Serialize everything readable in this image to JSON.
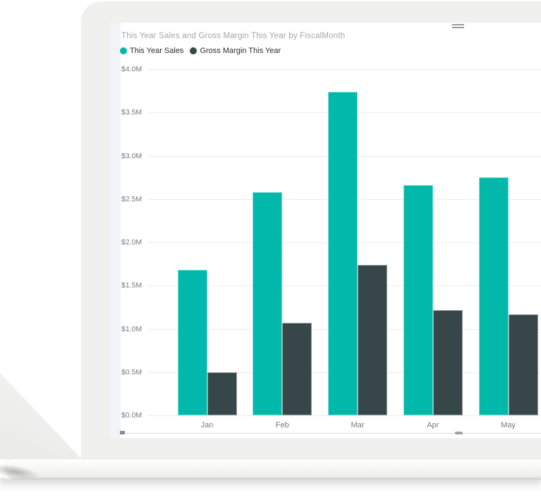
{
  "visual": {
    "title": "This Year Sales and Gross Margin This Year by FiscalMonth",
    "menu_icon": "grab-handle"
  },
  "chart_data": {
    "type": "bar",
    "title": "This Year Sales and Gross Margin This Year by FiscalMonth",
    "categories": [
      "Jan",
      "Feb",
      "Mar",
      "Apr",
      "May"
    ],
    "series": [
      {
        "name": "This Year Sales",
        "color": "#01B8AA",
        "values": [
          1.68,
          2.58,
          3.74,
          2.66,
          2.75
        ]
      },
      {
        "name": "Gross Margin This Year",
        "color": "#374649",
        "values": [
          0.5,
          1.07,
          1.74,
          1.22,
          1.17
        ]
      }
    ],
    "value_unit": "M",
    "xlabel": "FiscalMonth",
    "ylabel": "",
    "ylim": [
      0,
      4.0
    ],
    "yticks": [
      "$4.0M",
      "$3.5M",
      "$3.0M",
      "$2.5M",
      "$2.0M",
      "$1.5M",
      "$1.0M",
      "$0.5M",
      "$0.0M"
    ],
    "grid": true,
    "legend_position": "top-left"
  },
  "colors": {
    "series1": "#01B8AA",
    "series2": "#374649",
    "title_text": "#a6a6a6",
    "axis_text": "#7a7a7a",
    "gridline": "#ececec"
  }
}
